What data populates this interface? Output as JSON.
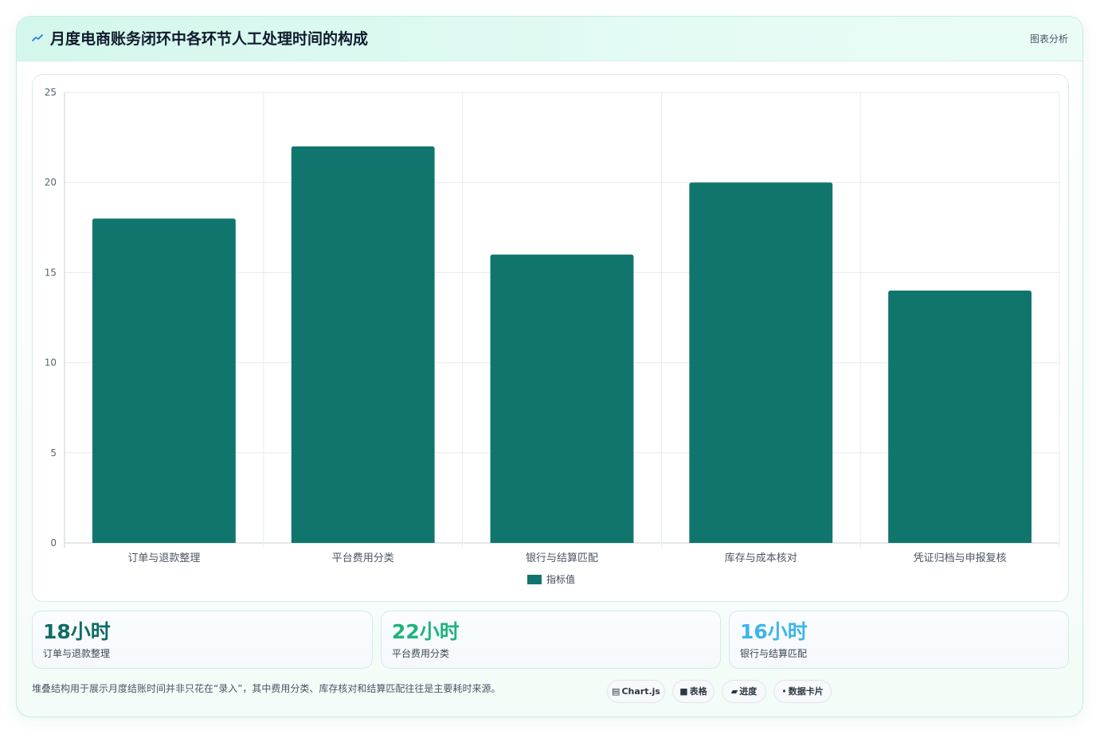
{
  "header": {
    "icon": "trend-line-icon",
    "title": "月度电商账务闭环中各环节人工处理时间的构成",
    "right_label": "图表分析"
  },
  "chart_data": {
    "type": "bar",
    "title": "",
    "categories": [
      "订单与退款整理",
      "平台费用分类",
      "银行与结算匹配",
      "库存与成本核对",
      "凭证归档与申报复核"
    ],
    "series": [
      {
        "name": "指标值",
        "values": [
          18,
          22,
          16,
          20,
          14
        ],
        "color": "#10766d"
      }
    ],
    "ylim": [
      0,
      25
    ],
    "yticks": [
      0,
      5,
      10,
      15,
      20,
      25
    ],
    "grid": true,
    "legend": "bottom-center"
  },
  "stats": [
    {
      "value": "18小时",
      "label": "订单与退款整理",
      "color": "#0f6d65"
    },
    {
      "value": "22小时",
      "label": "平台费用分类",
      "color": "#1fb37e"
    },
    {
      "value": "16小时",
      "label": "银行与结算匹配",
      "color": "#3cb6e8"
    }
  ],
  "footer": {
    "note": "堆叠结构用于展示月度结账时间并非只花在“录入”，其中费用分类、库存核对和结算匹配往往是主要耗时来源。",
    "tags": [
      {
        "glyph": "▤",
        "label": "Chart.js",
        "icon": "chart-icon"
      },
      {
        "glyph": "■",
        "label": "表格",
        "icon": "table-icon"
      },
      {
        "glyph": "▰",
        "label": "进度",
        "icon": "progress-icon"
      },
      {
        "glyph": "•",
        "label": "数据卡片",
        "icon": "card-icon"
      }
    ]
  }
}
